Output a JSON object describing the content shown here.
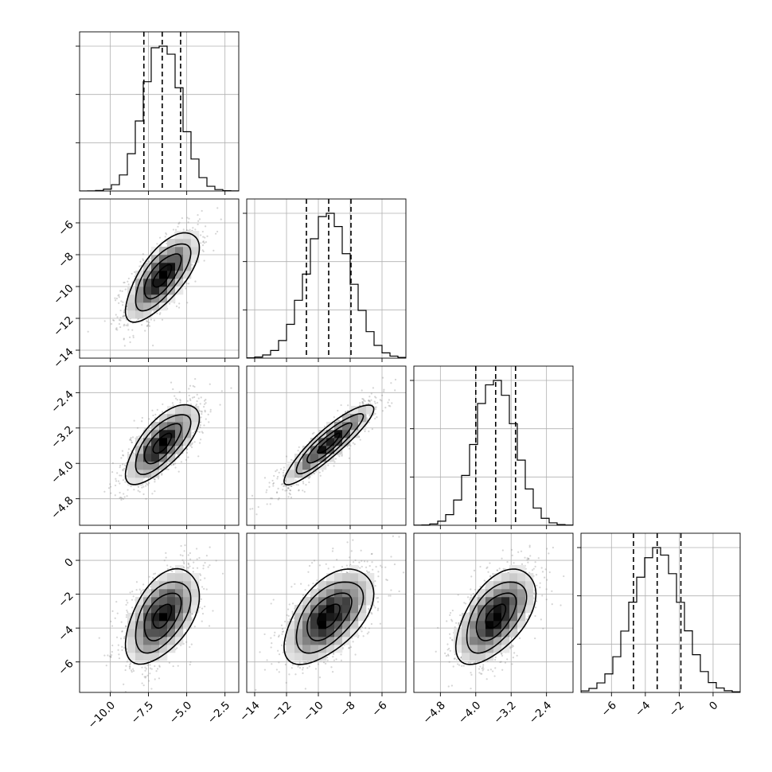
{
  "chart_data": {
    "type": "corner",
    "n_params": 4,
    "params": [
      {
        "index": 0,
        "mean": -6.6,
        "std": 1.2,
        "q16": -7.8,
        "q50": -6.6,
        "q84": -5.4,
        "range": [
          -12.0,
          -1.6
        ],
        "ticks": [
          -10.0,
          -7.5,
          -5.0,
          -2.5
        ],
        "tick_labels": [
          "−10.0",
          "−7.5",
          "−5.0",
          "−2.5"
        ]
      },
      {
        "index": 1,
        "mean": -9.35,
        "std": 1.4,
        "q16": -10.75,
        "q50": -9.35,
        "q84": -7.95,
        "range": [
          -14.5,
          -4.5
        ],
        "ticks": [
          -14,
          -12,
          -10,
          -8,
          -6
        ],
        "tick_labels": [
          "−14",
          "−12",
          "−10",
          "−8",
          "−6"
        ]
      },
      {
        "index": 2,
        "mean": -3.55,
        "std": 0.45,
        "q16": -4.0,
        "q50": -3.55,
        "q84": -3.1,
        "range": [
          -5.4,
          -1.8
        ],
        "ticks": [
          -4.8,
          -4.0,
          -3.2,
          -2.4
        ],
        "tick_labels": [
          "−4.8",
          "−4.0",
          "−3.2",
          "−2.4"
        ]
      },
      {
        "index": 3,
        "mean": -3.3,
        "std": 1.4,
        "q16": -4.7,
        "q50": -3.3,
        "q84": -1.9,
        "range": [
          -7.8,
          1.6
        ],
        "ticks": [
          -6,
          -4,
          -2,
          0
        ],
        "tick_labels": [
          "−6",
          "−4",
          "−2",
          "0"
        ]
      }
    ],
    "correlations": [
      [
        1.0,
        0.7,
        0.7,
        0.5
      ],
      [
        0.7,
        1.0,
        0.9,
        0.55
      ],
      [
        0.7,
        0.9,
        1.0,
        0.55
      ],
      [
        0.5,
        0.55,
        0.55,
        1.0
      ]
    ],
    "histogram_bins": 20,
    "quantiles": [
      0.16,
      0.5,
      0.84
    ],
    "contour_levels_sigma": [
      0.5,
      1.0,
      1.5,
      2.0
    ],
    "grid": true,
    "colors": {
      "lines": "#000000",
      "scatter": "#888888",
      "grid": "#b0b0b0"
    }
  }
}
